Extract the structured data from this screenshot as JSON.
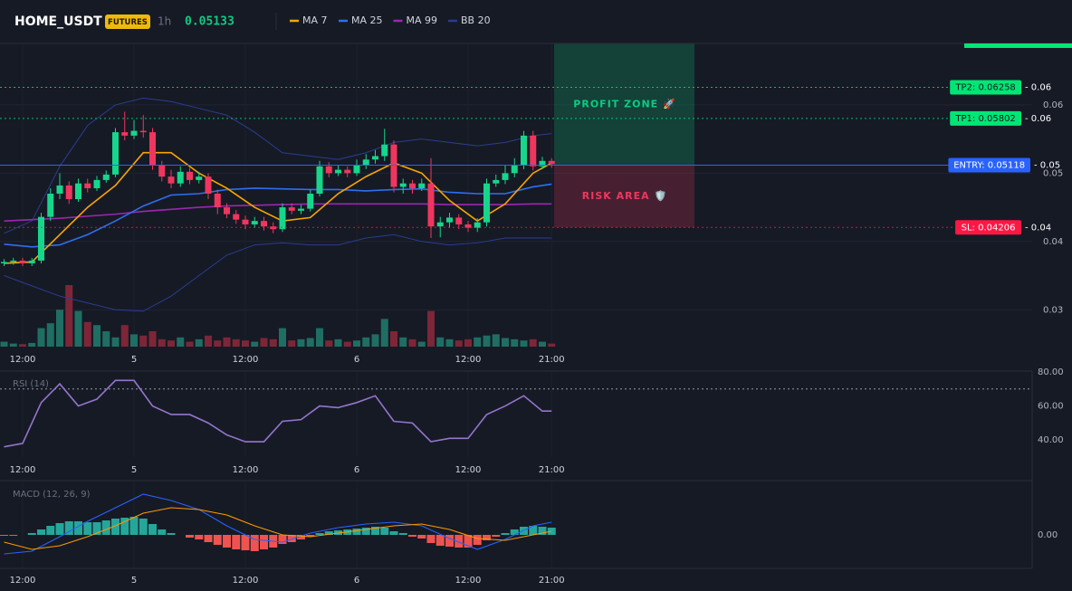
{
  "chart_data": [
    {
      "type": "candlestick",
      "symbol": "HOME_USDT",
      "badge": "FUTURES",
      "interval": "1h",
      "last_price": 0.05133,
      "categories": [
        null,
        null,
        "12:00",
        null,
        null,
        null,
        null,
        null,
        null,
        null,
        null,
        null,
        null,
        null,
        "5",
        null,
        null,
        null,
        null,
        null,
        null,
        null,
        null,
        null,
        null,
        null,
        "12:00",
        null,
        null,
        null,
        null,
        null,
        null,
        null,
        null,
        null,
        null,
        null,
        "6",
        null,
        null,
        null,
        null,
        null,
        null,
        null,
        null,
        null,
        null,
        null,
        "12:00",
        null,
        null,
        null,
        null,
        null,
        null,
        null,
        null,
        "21:00"
      ],
      "open": [
        0.0368,
        0.037,
        0.0372,
        0.0368,
        0.0372,
        0.0436,
        0.047,
        0.0482,
        0.0462,
        0.0485,
        0.0478,
        0.049,
        0.0498,
        0.056,
        0.0555,
        0.0562,
        0.056,
        0.0512,
        0.0495,
        0.0485,
        0.0502,
        0.049,
        0.0495,
        0.047,
        0.045,
        0.044,
        0.0432,
        0.0425,
        0.043,
        0.0422,
        0.0418,
        0.045,
        0.0445,
        0.0448,
        0.047,
        0.051,
        0.05,
        0.0505,
        0.05,
        0.0512,
        0.052,
        0.0525,
        0.0542,
        0.048,
        0.0485,
        0.0478,
        0.0485,
        0.0422,
        0.0428,
        0.0435,
        0.0425,
        0.042,
        0.0428,
        0.0485,
        0.049,
        0.05,
        0.0512,
        0.0555,
        0.051,
        0.0518
      ],
      "high": [
        0.0374,
        0.0376,
        0.0376,
        0.0376,
        0.0442,
        0.0478,
        0.05,
        0.0488,
        0.0492,
        0.0492,
        0.0496,
        0.0504,
        0.0566,
        0.059,
        0.0578,
        0.0585,
        0.0566,
        0.0518,
        0.0505,
        0.051,
        0.0508,
        0.0502,
        0.05,
        0.0476,
        0.0456,
        0.0446,
        0.0438,
        0.0436,
        0.0436,
        0.0428,
        0.0456,
        0.0456,
        0.0454,
        0.0476,
        0.0518,
        0.0516,
        0.0512,
        0.051,
        0.052,
        0.0528,
        0.0534,
        0.0565,
        0.0548,
        0.0492,
        0.049,
        0.0492,
        0.0522,
        0.0436,
        0.0442,
        0.044,
        0.043,
        0.0434,
        0.0492,
        0.0498,
        0.0512,
        0.0522,
        0.0562,
        0.0562,
        0.0524,
        0.0522
      ],
      "low": [
        0.0364,
        0.0366,
        0.0364,
        0.0364,
        0.0368,
        0.043,
        0.0462,
        0.0455,
        0.0458,
        0.0472,
        0.0474,
        0.0486,
        0.0494,
        0.0548,
        0.055,
        0.0552,
        0.0505,
        0.0488,
        0.0478,
        0.048,
        0.0484,
        0.0485,
        0.0462,
        0.044,
        0.0434,
        0.0426,
        0.0418,
        0.042,
        0.0416,
        0.0412,
        0.0414,
        0.044,
        0.044,
        0.0444,
        0.0466,
        0.0494,
        0.0496,
        0.0494,
        0.0496,
        0.0506,
        0.0514,
        0.0518,
        0.0472,
        0.047,
        0.047,
        0.0474,
        0.0405,
        0.0406,
        0.042,
        0.0418,
        0.0414,
        0.0414,
        0.0422,
        0.048,
        0.0484,
        0.0494,
        0.0506,
        0.0504,
        0.0506,
        0.0508
      ],
      "close": [
        0.037,
        0.0372,
        0.0368,
        0.0372,
        0.0436,
        0.047,
        0.0482,
        0.0462,
        0.0485,
        0.0478,
        0.049,
        0.0498,
        0.056,
        0.0555,
        0.0562,
        0.056,
        0.0512,
        0.0495,
        0.0485,
        0.0502,
        0.049,
        0.0495,
        0.047,
        0.045,
        0.044,
        0.0432,
        0.0425,
        0.043,
        0.0422,
        0.0418,
        0.045,
        0.0445,
        0.0448,
        0.047,
        0.051,
        0.05,
        0.0505,
        0.05,
        0.0512,
        0.052,
        0.0525,
        0.0542,
        0.048,
        0.0485,
        0.0478,
        0.0485,
        0.0422,
        0.0428,
        0.0435,
        0.0425,
        0.042,
        0.0428,
        0.0485,
        0.049,
        0.05,
        0.0512,
        0.0555,
        0.051,
        0.0518,
        0.05133
      ],
      "up_color": "#17d68c",
      "down_color": "#f0365e",
      "volume": [
        8,
        5,
        4,
        6,
        30,
        38,
        60,
        100,
        58,
        40,
        35,
        25,
        15,
        35,
        20,
        18,
        25,
        12,
        10,
        15,
        8,
        12,
        18,
        10,
        15,
        12,
        10,
        8,
        14,
        12,
        30,
        10,
        12,
        14,
        30,
        10,
        12,
        8,
        10,
        15,
        20,
        45,
        25,
        15,
        12,
        8,
        58,
        15,
        12,
        10,
        12,
        15,
        18,
        20,
        14,
        12,
        10,
        12,
        8,
        5
      ],
      "volume_lim": [
        0,
        100
      ],
      "volume_up_color": "#1f6e63",
      "volume_down_color": "#7d2638",
      "overlays": [
        {
          "name": "MA 7",
          "color": "#f7a600",
          "x": [
            0,
            3,
            6,
            9,
            12,
            15,
            18,
            21,
            24,
            27,
            30,
            33,
            36,
            39,
            42,
            45,
            48,
            51,
            54,
            57,
            59
          ],
          "values": [
            0.0368,
            0.037,
            0.041,
            0.045,
            0.0482,
            0.053,
            0.053,
            0.05,
            0.0478,
            0.045,
            0.043,
            0.0435,
            0.047,
            0.0495,
            0.0515,
            0.05,
            0.046,
            0.043,
            0.0455,
            0.05,
            0.0515
          ]
        },
        {
          "name": "MA 25",
          "color": "#2f6fed",
          "x": [
            0,
            3,
            6,
            9,
            12,
            15,
            18,
            21,
            24,
            27,
            30,
            33,
            36,
            39,
            42,
            45,
            48,
            51,
            54,
            57,
            59
          ],
          "values": [
            0.0396,
            0.0392,
            0.0395,
            0.041,
            0.043,
            0.0452,
            0.0468,
            0.047,
            0.0476,
            0.0478,
            0.0477,
            0.0476,
            0.0476,
            0.0474,
            0.0476,
            0.0477,
            0.0472,
            0.047,
            0.047,
            0.048,
            0.0484
          ]
        },
        {
          "name": "MA 99",
          "color": "#9c27b0",
          "x": [
            0,
            3,
            6,
            9,
            12,
            15,
            18,
            21,
            24,
            27,
            30,
            33,
            36,
            39,
            42,
            45,
            48,
            51,
            54,
            57,
            59
          ],
          "values": [
            0.043,
            0.0432,
            0.0434,
            0.0437,
            0.044,
            0.0444,
            0.0447,
            0.045,
            0.0452,
            0.0453,
            0.0454,
            0.0455,
            0.0455,
            0.0455,
            0.0455,
            0.0455,
            0.0454,
            0.0454,
            0.0454,
            0.0455,
            0.0455
          ]
        },
        {
          "name": "BB 20",
          "color": "#2a3d8f",
          "x": [
            0,
            3,
            6,
            9,
            12,
            15,
            18,
            21,
            24,
            27,
            30,
            33,
            36,
            39,
            42,
            45,
            48,
            51,
            54,
            57,
            59
          ],
          "upper": [
            0.0412,
            0.043,
            0.051,
            0.057,
            0.06,
            0.061,
            0.0605,
            0.0595,
            0.0585,
            0.056,
            0.053,
            0.0525,
            0.052,
            0.053,
            0.0545,
            0.055,
            0.0545,
            0.054,
            0.0545,
            0.0555,
            0.0558
          ],
          "lower": [
            0.035,
            0.0335,
            0.032,
            0.031,
            0.03,
            0.0298,
            0.032,
            0.035,
            0.038,
            0.0395,
            0.0398,
            0.0395,
            0.0395,
            0.0405,
            0.041,
            0.04,
            0.0395,
            0.0398,
            0.0405,
            0.0405,
            0.0405
          ]
        }
      ],
      "ylim": [
        0.0246,
        0.069
      ],
      "yticks": [
        0.03,
        0.04,
        0.05,
        0.06
      ],
      "grid": true,
      "levels": [
        {
          "label": "TP2: 0.06258",
          "value": 0.06258,
          "axis_label": "- 0.06",
          "color": "#00e676",
          "text_color": "#0b1a12",
          "dash": true
        },
        {
          "label": "TP1: 0.05802",
          "value": 0.05802,
          "axis_label": "- 0.06",
          "color": "#00e676",
          "text_color": "#0b1a12",
          "dash": true
        },
        {
          "label": "ENTRY: 0.05118",
          "value": 0.05118,
          "axis_label": "- 0.05",
          "color": "#2962ff",
          "text_color": "#ffffff",
          "dash": false
        },
        {
          "label": "SL: 0.04206",
          "value": 0.04206,
          "axis_label": "- 0.04",
          "color": "#ff1744",
          "text_color": "#ffffff",
          "dash": true
        }
      ],
      "zones": [
        {
          "label": "PROFIT ZONE 🚀",
          "color": "#0ecb81"
        },
        {
          "label": "RISK AREA 🛡️",
          "color": "#f0365e"
        }
      ]
    },
    {
      "type": "line",
      "title": "RSI (14)",
      "categories": [
        null,
        null,
        "12:00",
        null,
        null,
        null,
        null,
        null,
        null,
        null,
        null,
        null,
        null,
        null,
        "5",
        null,
        null,
        null,
        null,
        null,
        null,
        null,
        null,
        null,
        null,
        null,
        "12:00",
        null,
        null,
        null,
        null,
        null,
        null,
        null,
        null,
        null,
        null,
        null,
        "6",
        null,
        null,
        null,
        null,
        null,
        null,
        null,
        null,
        null,
        null,
        null,
        "12:00",
        null,
        null,
        null,
        null,
        null,
        null,
        null,
        null,
        "21:00"
      ],
      "x": [
        0,
        2,
        4,
        6,
        8,
        10,
        12,
        14,
        16,
        18,
        20,
        22,
        24,
        26,
        28,
        30,
        32,
        34,
        36,
        38,
        40,
        42,
        44,
        46,
        48,
        50,
        52,
        54,
        56,
        58,
        59
      ],
      "values": [
        36,
        38,
        62,
        73,
        60,
        64,
        75,
        75,
        60,
        55,
        55,
        50,
        43,
        39,
        39,
        51,
        52,
        60,
        59,
        62,
        66,
        51,
        50,
        39,
        41,
        41,
        55,
        60,
        66,
        57,
        57
      ],
      "color": "#9575cd",
      "ylim": [
        30,
        80.5
      ],
      "yticks": [
        {
          "value": 40,
          "label": "40.00"
        },
        {
          "value": 60,
          "label": "60.00"
        },
        {
          "value": 80,
          "label": "80.00"
        }
      ],
      "overbought": 70
    },
    {
      "type": "macd",
      "title": "MACD (12, 26, 9)",
      "categories": [
        null,
        null,
        "12:00",
        null,
        null,
        null,
        null,
        null,
        null,
        null,
        null,
        null,
        null,
        null,
        "5",
        null,
        null,
        null,
        null,
        null,
        null,
        null,
        null,
        null,
        null,
        null,
        "12:00",
        null,
        null,
        null,
        null,
        null,
        null,
        null,
        null,
        null,
        null,
        null,
        "6",
        null,
        null,
        null,
        null,
        null,
        null,
        null,
        null,
        null,
        null,
        null,
        "12:00",
        null,
        null,
        null,
        null,
        null,
        null,
        null,
        null,
        "21:00"
      ],
      "histogram": [
        -0.0001,
        -0.0001,
        0,
        0.0002,
        0.0006,
        0.001,
        0.0013,
        0.0015,
        0.0015,
        0.0014,
        0.0014,
        0.0016,
        0.0018,
        0.0019,
        0.002,
        0.0018,
        0.0012,
        0.0006,
        0.0002,
        0,
        -0.0003,
        -0.0005,
        -0.0008,
        -0.0011,
        -0.0014,
        -0.0016,
        -0.0017,
        -0.0018,
        -0.0016,
        -0.0014,
        -0.001,
        -0.0008,
        -0.0005,
        -0.0002,
        0.0002,
        0.0004,
        0.0005,
        0.0006,
        0.0007,
        0.0008,
        0.0009,
        0.0008,
        0.0004,
        0.0002,
        -0.0002,
        -0.0004,
        -0.0009,
        -0.0012,
        -0.0013,
        -0.0014,
        -0.0014,
        -0.0011,
        -0.0006,
        -0.0002,
        0.0002,
        0.0006,
        0.0009,
        0.001,
        0.0009,
        0.0008
      ],
      "hist_up_color": "#26a69a",
      "hist_down_color": "#ef5350",
      "x": [
        0,
        3,
        6,
        9,
        12,
        15,
        18,
        21,
        24,
        27,
        30,
        33,
        36,
        39,
        42,
        45,
        48,
        51,
        54,
        57,
        59
      ],
      "series": [
        {
          "color": "#2962ff",
          "values": [
            -0.0021,
            -0.0018,
            -0.0002,
            0.0015,
            0.003,
            0.0045,
            0.0038,
            0.0028,
            0.001,
            -0.0005,
            -0.0008,
            0.0002,
            0.0008,
            0.0012,
            0.0014,
            0.001,
            -0.0004,
            -0.0016,
            -0.0005,
            0.001,
            0.0014
          ]
        },
        {
          "color": "#ff9800",
          "values": [
            -0.0008,
            -0.0016,
            -0.0012,
            -0.0002,
            0.001,
            0.0024,
            0.003,
            0.0028,
            0.0022,
            0.001,
            0,
            -0.0002,
            0.0002,
            0.0006,
            0.001,
            0.0012,
            0.0006,
            -0.0004,
            -0.0006,
            0,
            0.0004
          ]
        }
      ],
      "ylim": [
        -0.0037,
        0.0059
      ],
      "yticks": [
        {
          "value": 0,
          "label": "0.00"
        }
      ]
    }
  ]
}
